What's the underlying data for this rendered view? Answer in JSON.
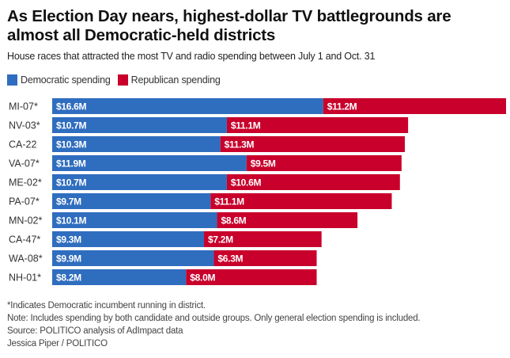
{
  "header": {
    "title": "As Election Day nears, highest-dollar TV battlegrounds are almost all Democratic-held districts",
    "subtitle": "House races that attracted the most TV and radio spending between July 1 and Oct. 31"
  },
  "legend": [
    {
      "label": "Democratic spending",
      "color": "#2f6dbf"
    },
    {
      "label": "Republican spending",
      "color": "#c8002b"
    }
  ],
  "chart_data": {
    "type": "bar",
    "orientation": "horizontal",
    "stacked": true,
    "title": "As Election Day nears, highest-dollar TV battlegrounds are almost all Democratic-held districts",
    "subtitle": "House races that attracted the most TV and radio spending between July 1 and Oct. 31",
    "xlabel": "",
    "ylabel": "",
    "units": "$M",
    "grid": false,
    "legend_position": "top-left",
    "categories": [
      "MI-07*",
      "NV-03*",
      "CA-22",
      "VA-07*",
      "ME-02*",
      "PA-07*",
      "MN-02*",
      "CA-47*",
      "WA-08*",
      "NH-01*"
    ],
    "series": [
      {
        "name": "Democratic spending",
        "color": "#2f6dbf",
        "values": [
          16.6,
          10.7,
          10.3,
          11.9,
          10.7,
          9.7,
          10.1,
          9.3,
          9.9,
          8.2
        ],
        "labels": [
          "$16.6M",
          "$10.7M",
          "$10.3M",
          "$11.9M",
          "$10.7M",
          "$9.7M",
          "$10.1M",
          "$9.3M",
          "$9.9M",
          "$8.2M"
        ]
      },
      {
        "name": "Republican spending",
        "color": "#c8002b",
        "values": [
          11.2,
          11.1,
          11.3,
          9.5,
          10.6,
          11.1,
          8.6,
          7.2,
          6.3,
          8.0
        ],
        "labels": [
          "$11.2M",
          "$11.1M",
          "$11.3M",
          "$9.5M",
          "$10.6M",
          "$11.1M",
          "$8.6M",
          "$7.2M",
          "$6.3M",
          "$8.0M"
        ]
      }
    ],
    "xlim": [
      0,
      27.8
    ]
  },
  "footnotes": [
    "*Indicates Democratic incumbent running in district.",
    "Note: Includes spending by both candidate and outside groups. Only general election spending is included.",
    "Source: POLITICO analysis of AdImpact data",
    "Jessica Piper / POLITICO"
  ]
}
